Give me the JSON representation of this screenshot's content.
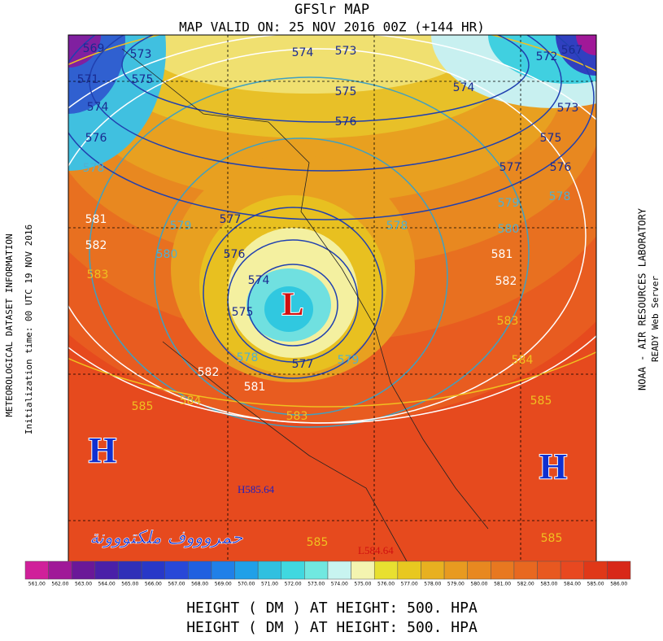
{
  "header": {
    "title": "GFSlr MAP",
    "subtitle": "MAP VALID ON: 25 NOV 2016 00Z (+144 HR)"
  },
  "left_text": [
    "METEOROLOGICAL DATASET INFORMATION",
    "Initialization time: 00 UTC 19 NOV 2016"
  ],
  "right_text": [
    "NOAA - AIR RESOURCES LABORATORY",
    "READY Web Server"
  ],
  "map": {
    "contour_labels": [
      "569",
      "573",
      "574",
      "573",
      "572",
      "567",
      "571",
      "575",
      "574",
      "575",
      "574",
      "576",
      "573",
      "576",
      "575",
      "578",
      "577",
      "576",
      "579",
      "578",
      "581",
      "579",
      "577",
      "578",
      "580",
      "582",
      "580",
      "576",
      "581",
      "583",
      "574",
      "582",
      "575",
      "583",
      "578",
      "577",
      "579",
      "584",
      "582",
      "581",
      "585",
      "584",
      "585",
      "583",
      "585",
      "585"
    ],
    "centers": [
      "L",
      "H",
      "H"
    ],
    "extremes": [
      "H585.64",
      "L584.64"
    ],
    "watermark": "حمروووف ملكتووونة"
  },
  "colorbar": {
    "labels": [
      "561.00",
      "562.00",
      "563.00",
      "564.00",
      "565.00",
      "566.00",
      "567.00",
      "568.00",
      "569.00",
      "570.00",
      "571.00",
      "572.00",
      "573.00",
      "574.00",
      "575.00",
      "576.00",
      "577.00",
      "578.00",
      "579.00",
      "580.00",
      "581.00",
      "582.00",
      "583.00",
      "584.00",
      "585.00",
      "586.00"
    ],
    "colors": [
      "#d0209a",
      "#a01898",
      "#6a1898",
      "#4a20a8",
      "#3030b8",
      "#2838c8",
      "#2848d8",
      "#2060e0",
      "#2080e8",
      "#20a0e8",
      "#30c0e0",
      "#40d8e0",
      "#70e8e0",
      "#c8f4f0",
      "#f4f4b0",
      "#e8e030",
      "#e8c820",
      "#e8b020",
      "#e89a20",
      "#e88820",
      "#e87820",
      "#e86820",
      "#e85820",
      "#e84820",
      "#e03818",
      "#d82818"
    ]
  },
  "footer": [
    "HEIGHT (   DM   ) AT HEIGHT: 500. HPA",
    "HEIGHT (   DM   ) AT HEIGHT: 500. HPA"
  ]
}
